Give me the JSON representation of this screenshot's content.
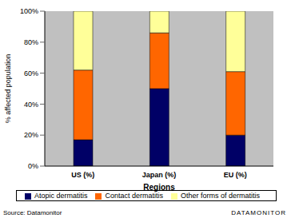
{
  "chart_data": {
    "type": "bar",
    "stacked": true,
    "x_label": "Regions",
    "y_label": "% affected population",
    "categories": [
      "US (%)",
      "Japan (%)",
      "EU (%)"
    ],
    "series": [
      {
        "name": "Atopic dermatitis",
        "color": "#000066",
        "values": [
          17,
          50,
          20
        ]
      },
      {
        "name": "Contact dermatitis",
        "color": "#ff6600",
        "values": [
          45,
          36,
          41
        ]
      },
      {
        "name": "Other forms of dermatitis",
        "color": "#ffff99",
        "values": [
          38,
          14,
          39
        ]
      }
    ],
    "ylim": [
      0,
      100
    ],
    "yticks": [
      {
        "value": 0,
        "label": "0%"
      },
      {
        "value": 20,
        "label": "20%"
      },
      {
        "value": 40,
        "label": "40%"
      },
      {
        "value": 60,
        "label": "60%"
      },
      {
        "value": 80,
        "label": "80%"
      },
      {
        "value": 100,
        "label": "100%"
      }
    ],
    "grid": false,
    "legend": "bottom",
    "source": "Source: Datamonitor",
    "credit": "DATAMONITOR"
  }
}
